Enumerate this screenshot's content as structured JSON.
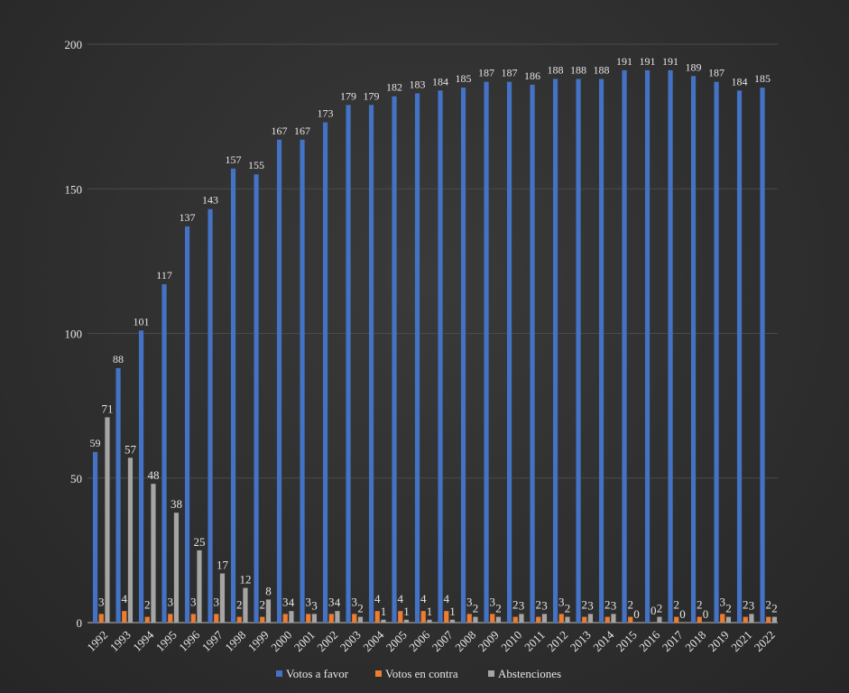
{
  "chart_data": {
    "type": "bar",
    "title": "",
    "xlabel": "",
    "ylabel": "",
    "ylim": [
      0,
      200
    ],
    "yticks": [
      "0",
      "50",
      "100",
      "150",
      "200"
    ],
    "grid": true,
    "legend_position": "bottom",
    "categories": [
      "1992",
      "1993",
      "1994",
      "1995",
      "1996",
      "1997",
      "1998",
      "1999",
      "2000",
      "2001",
      "2002",
      "2003",
      "2004",
      "2005",
      "2006",
      "2007",
      "2008",
      "2009",
      "2010",
      "2011",
      "2012",
      "2013",
      "2014",
      "2015",
      "2016",
      "2017",
      "2018",
      "2019",
      "2021",
      "2022"
    ],
    "series": [
      {
        "name": "Votos a favor",
        "color": "#4472c4",
        "values": [
          59,
          88,
          101,
          117,
          137,
          143,
          157,
          155,
          167,
          167,
          173,
          179,
          179,
          182,
          183,
          184,
          185,
          187,
          187,
          186,
          188,
          188,
          188,
          191,
          191,
          191,
          189,
          187,
          184,
          185
        ]
      },
      {
        "name": "Votos en contra",
        "color": "#ed7d31",
        "values": [
          3,
          4,
          2,
          3,
          3,
          3,
          2,
          2,
          3,
          3,
          3,
          3,
          4,
          4,
          4,
          4,
          3,
          3,
          2,
          2,
          3,
          2,
          2,
          2,
          0,
          2,
          2,
          3,
          2,
          2
        ]
      },
      {
        "name": "Abstenciones",
        "color": "#a5a5a5",
        "values": [
          71,
          57,
          48,
          38,
          25,
          17,
          12,
          8,
          4,
          3,
          4,
          2,
          1,
          1,
          1,
          1,
          2,
          2,
          3,
          3,
          2,
          3,
          3,
          0,
          2,
          0,
          0,
          2,
          3,
          2
        ]
      }
    ]
  }
}
